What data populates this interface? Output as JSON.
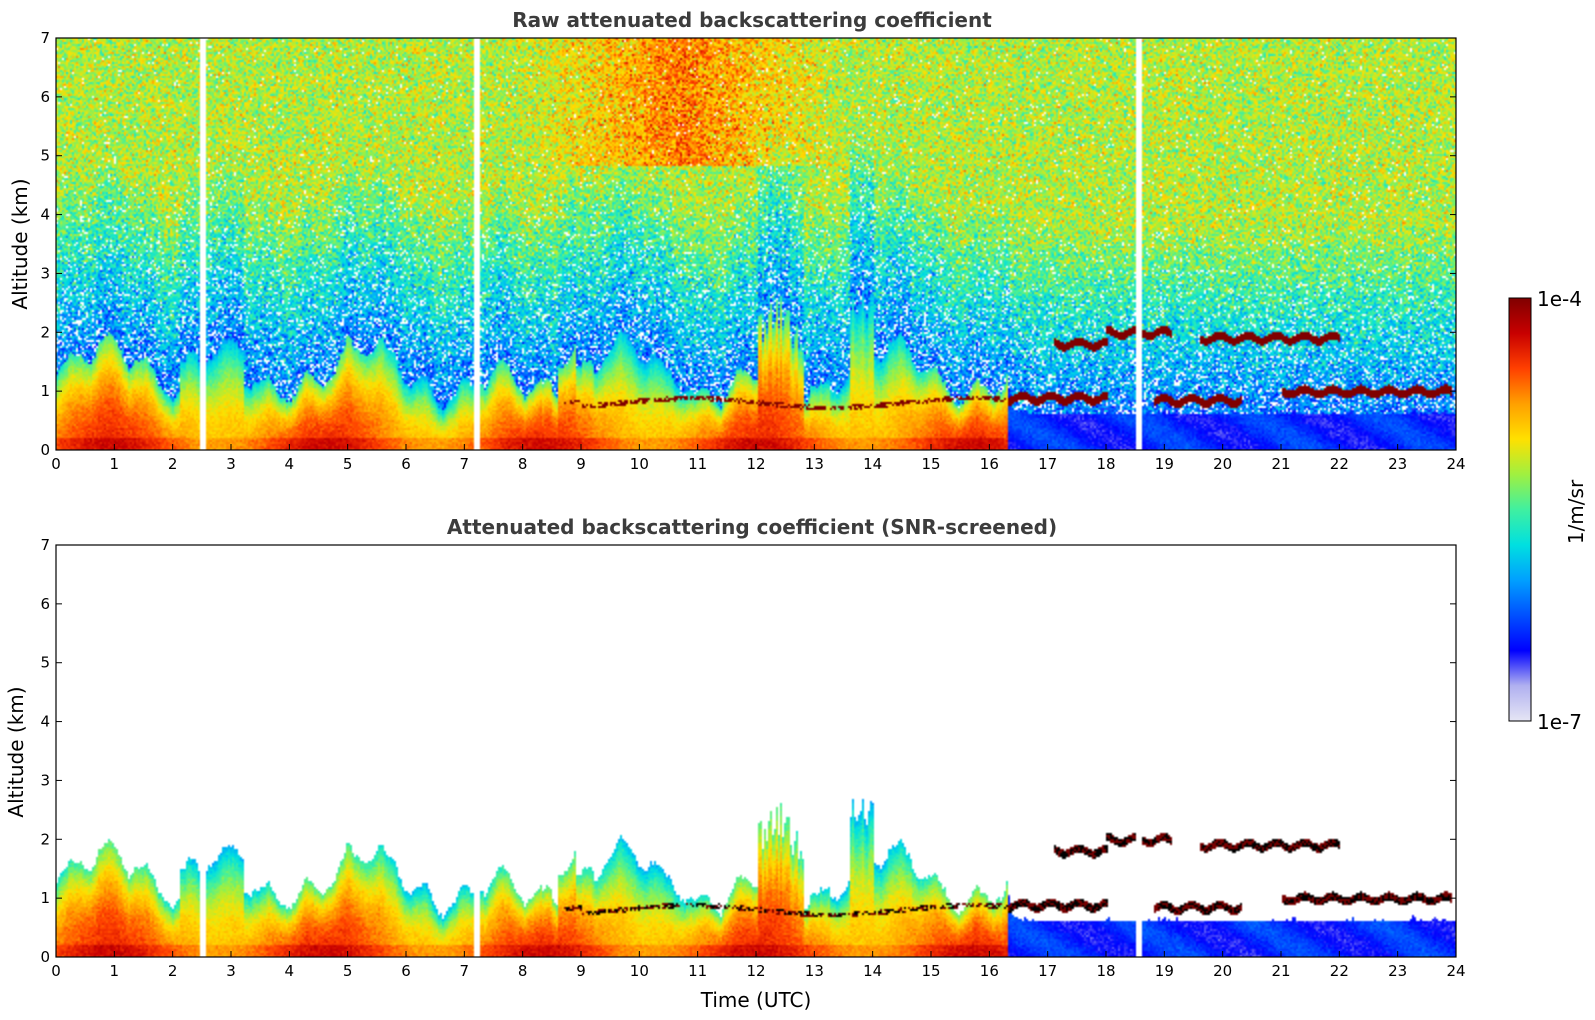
{
  "chart_data": [
    {
      "type": "heatmap",
      "title": "Raw attenuated backscattering coefficient",
      "ylabel": "Altitude (km)",
      "xlabel": "",
      "xlim": [
        0,
        24
      ],
      "ylim": [
        0,
        7
      ],
      "xticks": [
        "0",
        "1",
        "2",
        "3",
        "4",
        "5",
        "6",
        "7",
        "8",
        "9",
        "10",
        "11",
        "12",
        "13",
        "14",
        "15",
        "16",
        "17",
        "18",
        "19",
        "20",
        "21",
        "22",
        "23",
        "24"
      ],
      "yticks": [
        "0",
        "1",
        "2",
        "3",
        "4",
        "5",
        "6",
        "7"
      ],
      "screened": false
    },
    {
      "type": "heatmap",
      "title": "Attenuated backscattering coefficient (SNR-screened)",
      "ylabel": "Altitude (km)",
      "xlabel": "Time (UTC)",
      "xlim": [
        0,
        24
      ],
      "ylim": [
        0,
        7
      ],
      "xticks": [
        "0",
        "1",
        "2",
        "3",
        "4",
        "5",
        "6",
        "7",
        "8",
        "9",
        "10",
        "11",
        "12",
        "13",
        "14",
        "15",
        "16",
        "17",
        "18",
        "19",
        "20",
        "21",
        "22",
        "23",
        "24"
      ],
      "yticks": [
        "0",
        "1",
        "2",
        "3",
        "4",
        "5",
        "6",
        "7"
      ],
      "screened": true
    }
  ],
  "colorbar": {
    "label": "1/m/sr",
    "max_label": "1e-4",
    "min_label": "1e-7",
    "scale": "log",
    "range": [
      1e-07,
      0.0001
    ],
    "colormap": [
      "#e6e6f5",
      "#b0b0f0",
      "#0000ff",
      "#0050ff",
      "#00a0ff",
      "#00e0e0",
      "#40f0a0",
      "#a0f040",
      "#ffe000",
      "#ffa000",
      "#ff4000",
      "#c80000",
      "#800000"
    ]
  },
  "features": {
    "cloud_layers": [
      {
        "t": [
          17.1,
          18.0
        ],
        "z": 1.78
      },
      {
        "t": [
          18.0,
          19.1
        ],
        "z": 1.97
      },
      {
        "t": [
          19.6,
          22.0
        ],
        "z": 1.88
      },
      {
        "t": [
          16.3,
          18.0
        ],
        "z": 0.86
      },
      {
        "t": [
          18.8,
          20.3
        ],
        "z": 0.82
      },
      {
        "t": [
          21.0,
          23.9
        ],
        "z": 0.97
      }
    ],
    "gaps": [
      2.5,
      7.2,
      18.55
    ]
  }
}
